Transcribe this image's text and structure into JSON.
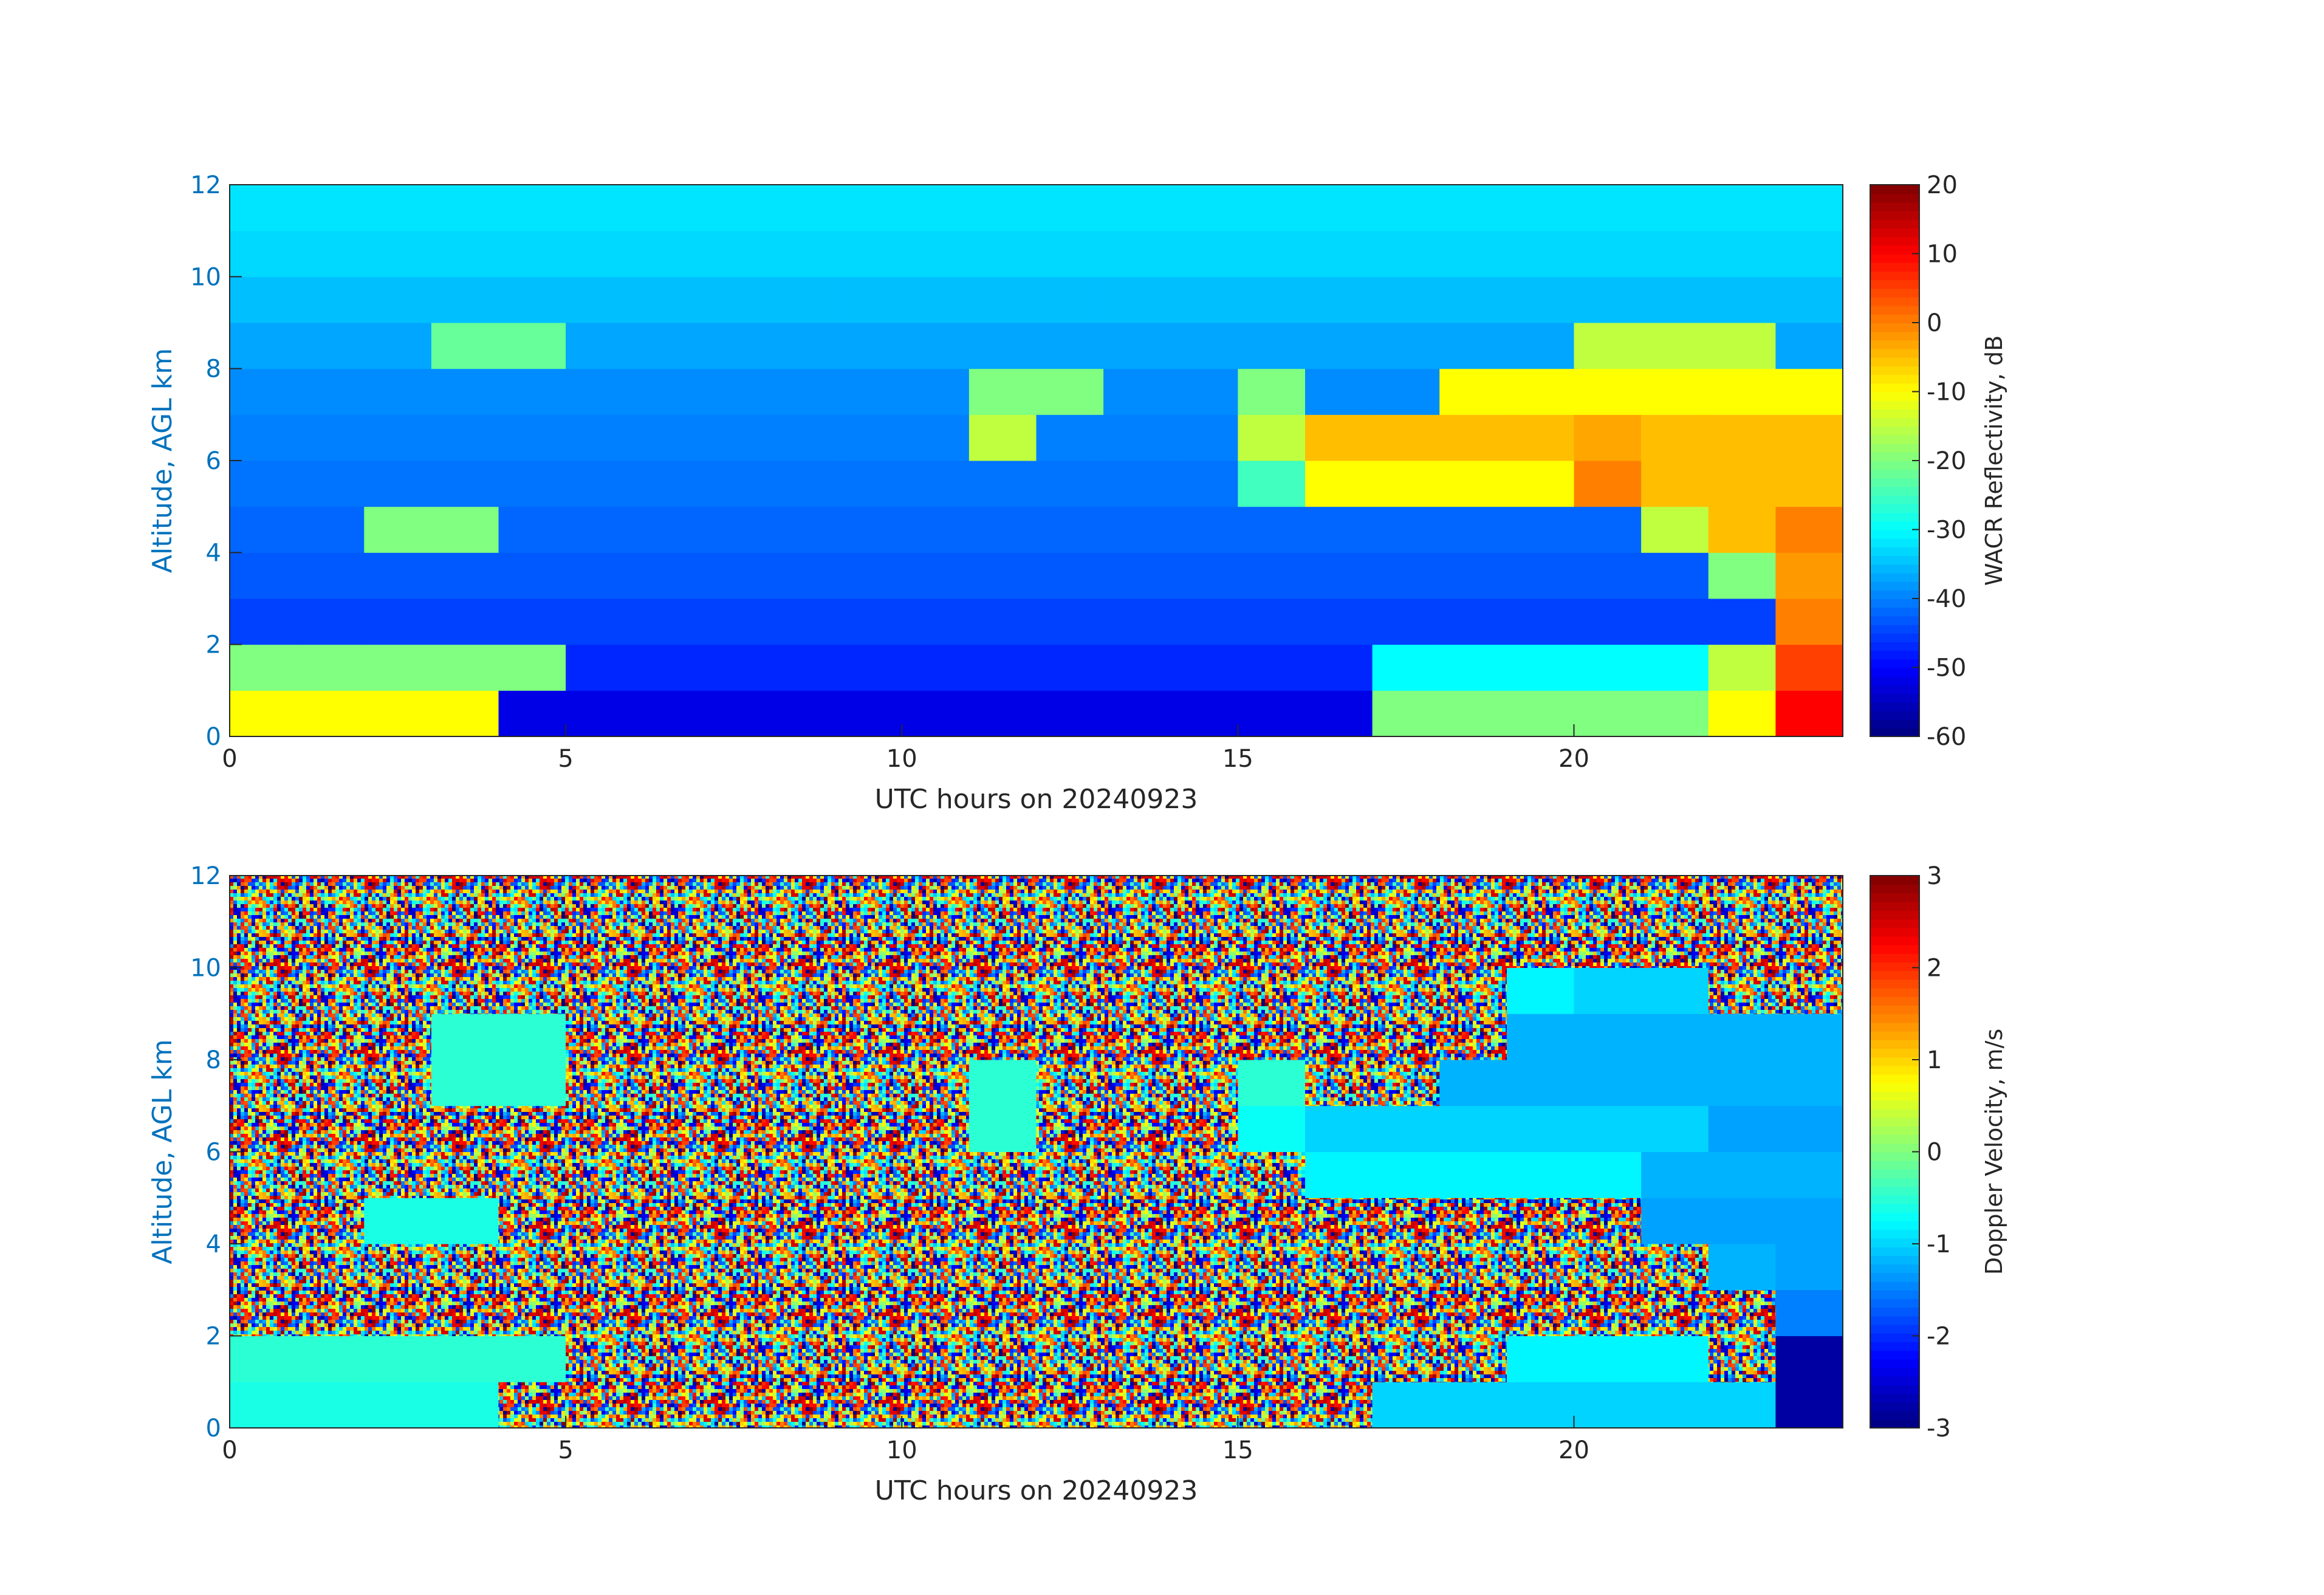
{
  "chart_data": [
    {
      "type": "heatmap",
      "xlabel": "UTC hours on 20240923",
      "ylabel": "Altitude, AGL km",
      "colorbar_label": "WACR Reflectivity, dB",
      "colormap": "jet",
      "xbins": [
        0,
        1,
        2,
        3,
        4,
        5,
        6,
        7,
        8,
        9,
        10,
        11,
        12,
        13,
        14,
        15,
        16,
        17,
        18,
        19,
        20,
        21,
        22,
        23,
        24
      ],
      "ybins": [
        0,
        1,
        2,
        3,
        4,
        5,
        6,
        7,
        8,
        9,
        10,
        11,
        12
      ],
      "xlim": [
        0,
        24
      ],
      "xticks": [
        0,
        5,
        10,
        15,
        20
      ],
      "ylim": [
        0,
        12
      ],
      "yticks": [
        0,
        2,
        4,
        6,
        8,
        10,
        12
      ],
      "clim": [
        -60,
        20
      ],
      "cticks": [
        -60,
        -50,
        -40,
        -30,
        -20,
        -10,
        0,
        10,
        20
      ],
      "values": [
        [
          -10,
          -10,
          -10,
          -10,
          -52,
          -52,
          -52,
          -52,
          -52,
          -52,
          -52,
          -52,
          -52,
          -52,
          -52,
          -52,
          -52,
          -20,
          -20,
          -20,
          -20,
          -20,
          -10,
          10
        ],
        [
          -20,
          -20,
          -20,
          -20,
          -20,
          -47,
          -47,
          -47,
          -47,
          -47,
          -47,
          -47,
          -47,
          -47,
          -47,
          -47,
          -47,
          -30,
          -30,
          -30,
          -30,
          -30,
          -15,
          5
        ],
        [
          -45,
          -45,
          -45,
          -45,
          -45,
          -45,
          -45,
          -45,
          -45,
          -45,
          -45,
          -45,
          -45,
          -45,
          -45,
          -45,
          -45,
          -45,
          -45,
          -45,
          -45,
          -45,
          -45,
          0
        ],
        [
          -43,
          -43,
          -43,
          -43,
          -43,
          -43,
          -43,
          -43,
          -43,
          -43,
          -43,
          -43,
          -43,
          -43,
          -43,
          -43,
          -43,
          -43,
          -43,
          -43,
          -43,
          -43,
          -20,
          -2
        ],
        [
          -42,
          -42,
          -20,
          -20,
          -42,
          -42,
          -42,
          -42,
          -42,
          -42,
          -42,
          -42,
          -42,
          -42,
          -42,
          -42,
          -42,
          -42,
          -42,
          -42,
          -42,
          -15,
          -5,
          0
        ],
        [
          -41,
          -41,
          -41,
          -41,
          -41,
          -41,
          -41,
          -41,
          -41,
          -41,
          -41,
          -41,
          -41,
          -41,
          -41,
          -25,
          -10,
          -10,
          -10,
          -10,
          0,
          -5,
          -5,
          -5
        ],
        [
          -40,
          -40,
          -40,
          -40,
          -40,
          -40,
          -40,
          -40,
          -40,
          -40,
          -40,
          -15,
          -40,
          -40,
          -40,
          -15,
          -5,
          -5,
          -5,
          -5,
          -3,
          -5,
          -5,
          -5
        ],
        [
          -39,
          -39,
          -39,
          -39,
          -39,
          -39,
          -39,
          -39,
          -39,
          -39,
          -39,
          -20,
          -20,
          -39,
          -39,
          -20,
          -39,
          -39,
          -10,
          -10,
          -10,
          -10,
          -10,
          -10
        ],
        [
          -37,
          -37,
          -37,
          -22,
          -22,
          -37,
          -37,
          -37,
          -37,
          -37,
          -37,
          -37,
          -37,
          -37,
          -37,
          -37,
          -37,
          -37,
          -37,
          -37,
          -15,
          -15,
          -15,
          -37
        ],
        [
          -35,
          -35,
          -35,
          -35,
          -35,
          -35,
          -35,
          -35,
          -35,
          -35,
          -35,
          -35,
          -35,
          -35,
          -35,
          -35,
          -35,
          -35,
          -35,
          -35,
          -35,
          -35,
          -35,
          -35
        ],
        [
          -33,
          -33,
          -33,
          -33,
          -33,
          -33,
          -33,
          -33,
          -33,
          -33,
          -33,
          -33,
          -33,
          -33,
          -33,
          -33,
          -33,
          -33,
          -33,
          -33,
          -33,
          -33,
          -33,
          -33
        ],
        [
          -32,
          -32,
          -32,
          -32,
          -32,
          -32,
          -32,
          -32,
          -32,
          -32,
          -32,
          -32,
          -32,
          -32,
          -32,
          -32,
          -32,
          -32,
          -32,
          -32,
          -32,
          -32,
          -32,
          -32
        ]
      ]
    },
    {
      "type": "heatmap",
      "xlabel": "UTC hours on 20240923",
      "ylabel": "Altitude, AGL km",
      "colorbar_label": "Doppler Velocity, m/s",
      "colormap": "jet",
      "xbins": [
        0,
        1,
        2,
        3,
        4,
        5,
        6,
        7,
        8,
        9,
        10,
        11,
        12,
        13,
        14,
        15,
        16,
        17,
        18,
        19,
        20,
        21,
        22,
        23,
        24
      ],
      "ybins": [
        0,
        1,
        2,
        3,
        4,
        5,
        6,
        7,
        8,
        9,
        10,
        11,
        12
      ],
      "xlim": [
        0,
        24
      ],
      "xticks": [
        0,
        5,
        10,
        15,
        20
      ],
      "ylim": [
        0,
        12
      ],
      "yticks": [
        0,
        2,
        4,
        6,
        8,
        10,
        12
      ],
      "clim": [
        -3,
        3
      ],
      "cticks": [
        -3,
        -2,
        -1,
        0,
        1,
        2,
        3
      ],
      "values": [
        [
          -0.6,
          -0.6,
          -0.6,
          -0.6,
          null,
          null,
          null,
          null,
          null,
          null,
          null,
          null,
          null,
          null,
          null,
          null,
          null,
          -1,
          -1,
          -1,
          -1,
          -1,
          -1,
          -2.8
        ],
        [
          -0.5,
          -0.5,
          -0.5,
          -0.5,
          -0.5,
          null,
          null,
          null,
          null,
          null,
          null,
          null,
          null,
          null,
          null,
          null,
          null,
          null,
          null,
          -0.8,
          -0.8,
          -0.8,
          null,
          -2.8
        ],
        [
          null,
          null,
          null,
          null,
          null,
          null,
          null,
          null,
          null,
          null,
          null,
          null,
          null,
          null,
          null,
          null,
          null,
          null,
          null,
          null,
          null,
          null,
          null,
          -1.5
        ],
        [
          null,
          null,
          null,
          null,
          null,
          null,
          null,
          null,
          null,
          null,
          null,
          null,
          null,
          null,
          null,
          null,
          null,
          null,
          null,
          null,
          null,
          null,
          -1.2,
          -1.3
        ],
        [
          null,
          null,
          -0.6,
          -0.6,
          null,
          null,
          null,
          null,
          null,
          null,
          null,
          null,
          null,
          null,
          null,
          null,
          null,
          null,
          null,
          null,
          null,
          -1.3,
          -1.3,
          -1.3
        ],
        [
          null,
          null,
          null,
          null,
          null,
          null,
          null,
          null,
          null,
          null,
          null,
          null,
          null,
          null,
          null,
          null,
          -0.8,
          -0.8,
          -0.8,
          -0.8,
          -0.8,
          -1.2,
          -1.2,
          -1.2
        ],
        [
          null,
          null,
          null,
          null,
          null,
          null,
          null,
          null,
          null,
          null,
          null,
          -0.5,
          null,
          null,
          null,
          -0.7,
          -1,
          -1,
          -1,
          -1,
          -1,
          -1,
          -1.3,
          -1.3
        ],
        [
          null,
          null,
          null,
          -0.5,
          -0.5,
          null,
          null,
          null,
          null,
          null,
          null,
          -0.5,
          null,
          null,
          null,
          -0.5,
          null,
          null,
          -1.2,
          -1.2,
          -1.2,
          -1.2,
          -1.2,
          -1.2
        ],
        [
          null,
          null,
          null,
          -0.5,
          -0.5,
          null,
          null,
          null,
          null,
          null,
          null,
          null,
          null,
          null,
          null,
          null,
          null,
          null,
          null,
          -1.2,
          -1.2,
          -1.2,
          -1.2,
          -1.2
        ],
        [
          null,
          null,
          null,
          null,
          null,
          null,
          null,
          null,
          null,
          null,
          null,
          null,
          null,
          null,
          null,
          null,
          null,
          null,
          null,
          -0.8,
          -1,
          -1,
          null,
          null
        ],
        [
          null,
          null,
          null,
          null,
          null,
          null,
          null,
          null,
          null,
          null,
          null,
          null,
          null,
          null,
          null,
          null,
          null,
          null,
          null,
          null,
          null,
          null,
          null,
          null
        ],
        [
          null,
          null,
          null,
          null,
          null,
          null,
          null,
          null,
          null,
          null,
          null,
          null,
          null,
          null,
          null,
          null,
          null,
          null,
          null,
          null,
          null,
          null,
          null,
          null
        ]
      ]
    }
  ]
}
